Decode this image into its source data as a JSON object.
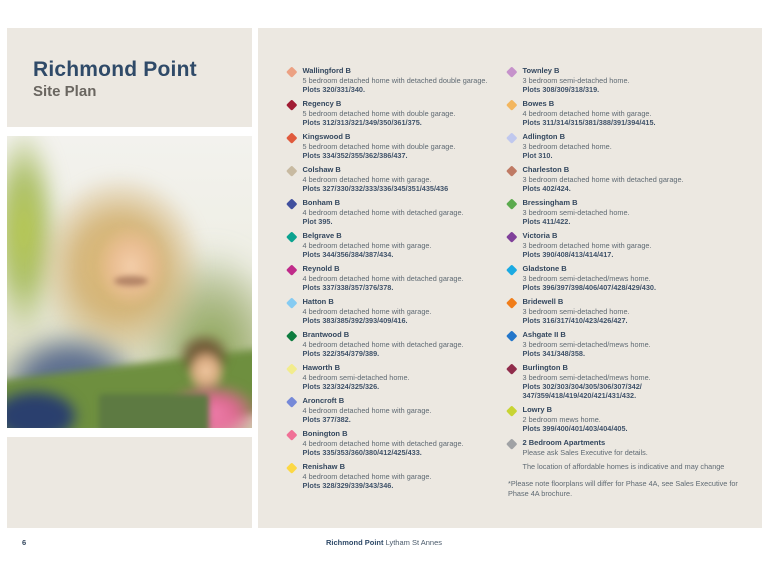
{
  "theme": {
    "brand_navy": "#2f4a68",
    "panel_beige": "#ece8e1",
    "subtitle_gray": "#6a6660",
    "body_gray": "#5f6a73"
  },
  "header": {
    "title": "Richmond Point",
    "subtitle": "Site Plan"
  },
  "legend": {
    "columns": [
      {
        "items": [
          {
            "name": "Wallingford B",
            "color": "#eca183",
            "description": "5 bedroom detached home with detached double garage.",
            "plots": "Plots 320/331/340."
          },
          {
            "name": "Regency B",
            "color": "#a01c33",
            "description": "5 bedroom detached home with double garage.",
            "plots": "Plots 312/313/321/349/350/361/375."
          },
          {
            "name": "Kingswood B",
            "color": "#e05a3d",
            "description": "5 bedroom detached home with double garage.",
            "plots": "Plots 334/352/355/362/386/437."
          },
          {
            "name": "Colshaw B",
            "color": "#c8baa1",
            "description": "4 bedroom detached home with garage.",
            "plots": "Plots 327/330/332/333/336/345/351/435/436"
          },
          {
            "name": "Bonham B",
            "color": "#41509e",
            "description": "4 bedroom detached home with detached garage.",
            "plots": "Plot 395."
          },
          {
            "name": "Belgrave B",
            "color": "#0ba390",
            "description": "4 bedroom detached home with garage.",
            "plots": "Plots 344/356/384/387/434."
          },
          {
            "name": "Reynold B",
            "color": "#c02b8a",
            "description": "4 bedroom detached home with detached garage.",
            "plots": "Plots 337/338/357/376/378."
          },
          {
            "name": "Hatton B",
            "color": "#85cbf2",
            "description": "4 bedroom detached home with garage.",
            "plots": "Plots 383/385/392/393/409/416."
          },
          {
            "name": "Brantwood B",
            "color": "#0e7c3f",
            "description": "4 bedroom detached home with detached garage.",
            "plots": "Plots 322/354/379/389."
          },
          {
            "name": "Haworth B",
            "color": "#f2ec8d",
            "description": "4 bedroom semi-detached home.",
            "plots": "Plots 323/324/325/326."
          },
          {
            "name": "Aroncroft B",
            "color": "#7689d8",
            "description": "4 bedroom detached home with garage.",
            "plots": "Plots 377/382."
          },
          {
            "name": "Bonington B",
            "color": "#f07096",
            "description": "4 bedroom detached home with detached garage.",
            "plots": "Plots 335/353/360/380/412/425/433."
          },
          {
            "name": "Renishaw B",
            "color": "#fcd844",
            "description": "4 bedroom detached home with garage.",
            "plots": "Plots 328/329/339/343/346."
          }
        ]
      },
      {
        "items": [
          {
            "name": "Townley B",
            "color": "#c692cb",
            "description": "3 bedroom semi-detached home.",
            "plots": "Plots 308/309/318/319."
          },
          {
            "name": "Bowes B",
            "color": "#f3b65e",
            "description": "4 bedroom detached home with garage.",
            "plots": "Plots 311/314/315/381/388/391/394/415."
          },
          {
            "name": "Adlington B",
            "color": "#c0c8ee",
            "description": "3 bedroom detached home.",
            "plots": "Plot 310."
          },
          {
            "name": "Charleston B",
            "color": "#bf7a64",
            "description": "3 bedroom detached home with detached garage.",
            "plots": "Plots 402/424."
          },
          {
            "name": "Bressingham B",
            "color": "#5baa4e",
            "description": "3 bedroom semi-detached home.",
            "plots": "Plots 411/422."
          },
          {
            "name": "Victoria B",
            "color": "#80409a",
            "description": "3 bedroom detached home with garage.",
            "plots": "Plots 390/408/413/414/417."
          },
          {
            "name": "Gladstone B",
            "color": "#1baae2",
            "description": "3 bedroom semi-detached/mews home.",
            "plots": "Plots 396/397/398/406/407/428/429/430."
          },
          {
            "name": "Bridewell B",
            "color": "#f07d1a",
            "description": "3 bedroom semi-detached home.",
            "plots": "Plots 316/317/410/423/426/427."
          },
          {
            "name": "Ashgate II B",
            "color": "#2376ca",
            "description": "3 bedroom semi-detached/mews home.",
            "plots": "Plots 341/348/358."
          },
          {
            "name": "Burlington B",
            "color": "#902c4b",
            "description": "3 bedroom semi-detached/mews home.",
            "plots": "Plots 302/303/304/305/306/307/342/ 347/359/418/419/420/421/431/432."
          },
          {
            "name": "Lowry B",
            "color": "#c8d433",
            "description": "2 bedroom mews home.",
            "plots": "Plots 399/400/401/403/404/405."
          },
          {
            "name": "2 Bedroom Apartments",
            "color": "#a0a2a5",
            "description": "Please ask Sales Executive for details.",
            "plots": null
          }
        ]
      }
    ],
    "affordable_note": "The location of affordable homes is indicative and may change",
    "footnote": "*Please note floorplans will differ for Phase 4A, see Sales Executive for Phase 4A brochure."
  },
  "footer": {
    "page_number": "6",
    "brand": "Richmond Point",
    "location": "Lytham St Annes"
  }
}
